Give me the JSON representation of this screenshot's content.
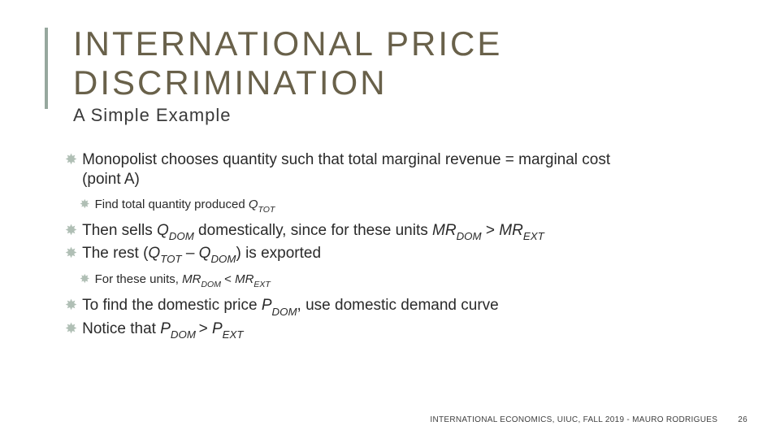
{
  "title_line1": "INTERNATIONAL PRICE",
  "title_line2": "DISCRIMINATION",
  "subtitle": "A Simple Example",
  "bullets": {
    "b1_part1": "Monopolist chooses quantity such that total marginal revenue = marginal cost",
    "b1_part2": "(point A)",
    "b1a_prefix": "Find total quantity produced ",
    "b1a_q": "Q",
    "b1a_sub": "TOT",
    "b2_p1": "Then sells ",
    "b2_q1": "Q",
    "b2_s1": "DOM",
    "b2_p2": " domestically, since for these units ",
    "b2_m1": "MR",
    "b2_s2": "DOM",
    "b2_gt": " > ",
    "b2_m2": "MR",
    "b2_s3": "EXT",
    "b3_p1": "The rest (",
    "b3_q1": "Q",
    "b3_s1": "TOT",
    "b3_dash": " – ",
    "b3_q2": "Q",
    "b3_s2": "DOM",
    "b3_p2": ") is exported",
    "b3a_p1": "For these units, ",
    "b3a_m1": "MR",
    "b3a_s1": "DOM",
    "b3a_lt": " < ",
    "b3a_m2": "MR",
    "b3a_s2": "EXT",
    "b4_p1": "To find the domestic price ",
    "b4_pd": "P",
    "b4_s1": "DOM",
    "b4_p2": ", use domestic demand curve",
    "b5_p1": "Notice that ",
    "b5_pd": "P",
    "b5_s1": "DOM ",
    "b5_gt": "> ",
    "b5_pe": "P",
    "b5_s2": "EXT"
  },
  "footer_text": "INTERNATIONAL ECONOMICS, UIUC, FALL 2019 - MAURO RODRIGUES",
  "page_number": "26",
  "colors": {
    "title": "#69614a",
    "accent_bar": "#97a89e",
    "bullet_star": "#b0bfb5",
    "body_text": "#2a2a2a",
    "background": "#ffffff"
  }
}
